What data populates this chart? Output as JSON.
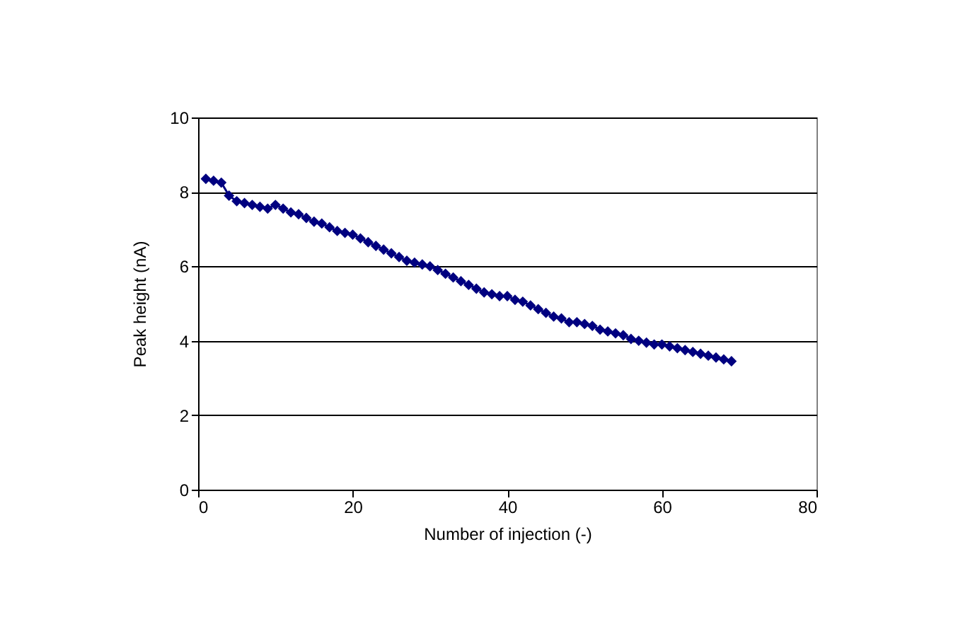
{
  "chart_data": {
    "type": "line",
    "xlabel": "Number of injection (-)",
    "ylabel": "Peak height (nA)",
    "marker": "diamond",
    "grid": "y",
    "xlim": [
      0,
      80
    ],
    "xticks": [
      0,
      20,
      40,
      60,
      80
    ],
    "ylim": [
      0,
      10
    ],
    "yticks": [
      0,
      2,
      4,
      6,
      8,
      10
    ],
    "x": [
      1,
      2,
      3,
      4,
      5,
      6,
      7,
      8,
      9,
      10,
      11,
      12,
      13,
      14,
      15,
      16,
      17,
      18,
      19,
      20,
      21,
      22,
      23,
      24,
      25,
      26,
      27,
      28,
      29,
      30,
      31,
      32,
      33,
      34,
      35,
      36,
      37,
      38,
      39,
      40,
      41,
      42,
      43,
      44,
      45,
      46,
      47,
      48,
      49,
      50,
      51,
      52,
      53,
      54,
      55,
      56,
      57,
      58,
      59,
      60,
      61,
      62,
      63,
      64,
      65,
      66,
      67,
      68,
      69
    ],
    "series": [
      {
        "color": "#000080",
        "values": [
          8.35,
          8.3,
          8.25,
          7.9,
          7.75,
          7.7,
          7.65,
          7.6,
          7.55,
          7.65,
          7.55,
          7.45,
          7.4,
          7.3,
          7.2,
          7.15,
          7.05,
          6.95,
          6.9,
          6.85,
          6.75,
          6.65,
          6.55,
          6.45,
          6.35,
          6.25,
          6.15,
          6.1,
          6.05,
          6.0,
          5.9,
          5.8,
          5.7,
          5.6,
          5.5,
          5.4,
          5.3,
          5.25,
          5.2,
          5.2,
          5.1,
          5.05,
          4.95,
          4.85,
          4.75,
          4.65,
          4.6,
          4.5,
          4.5,
          4.45,
          4.4,
          4.3,
          4.25,
          4.2,
          4.15,
          4.05,
          4.0,
          3.95,
          3.9,
          3.9,
          3.85,
          3.8,
          3.75,
          3.7,
          3.65,
          3.6,
          3.55,
          3.5,
          3.45
        ]
      }
    ]
  }
}
